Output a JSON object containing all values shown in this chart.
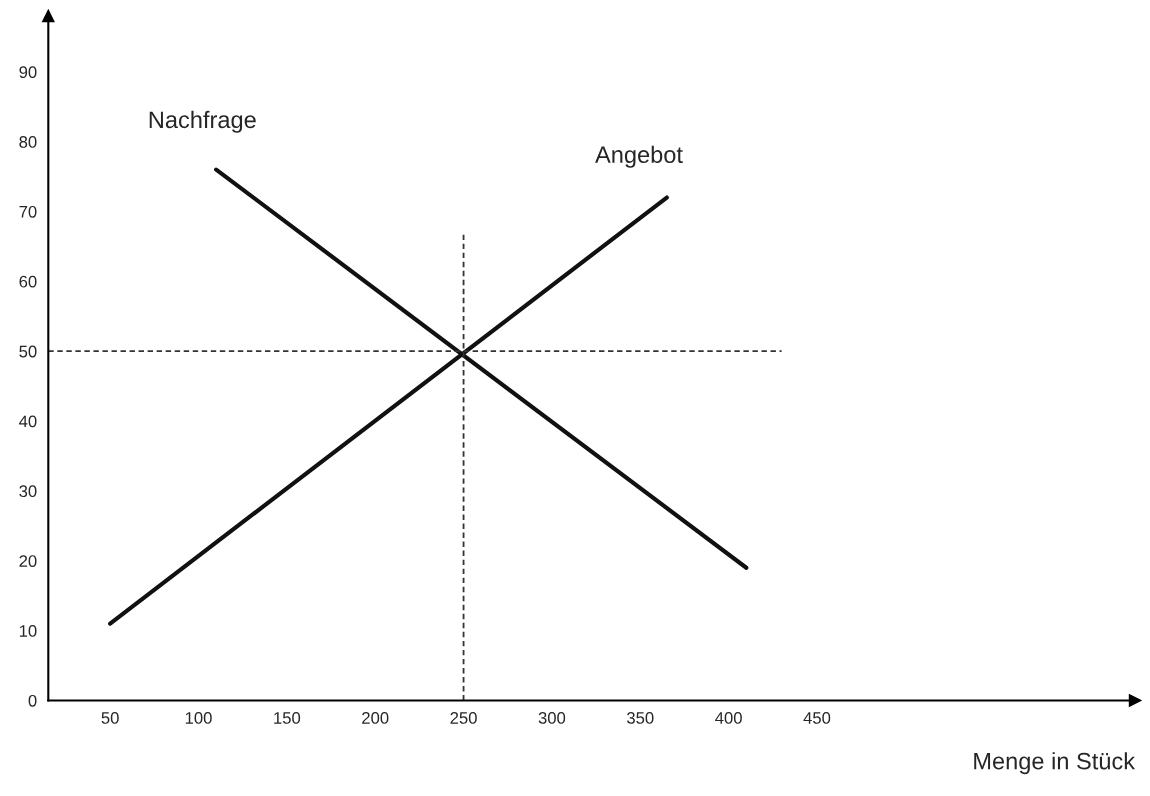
{
  "chart_data": {
    "type": "line",
    "xlabel": "Menge in Stück",
    "xlim": [
      15,
      630
    ],
    "xticks": [
      50,
      100,
      150,
      200,
      250,
      300,
      350,
      400,
      450
    ],
    "ylim": [
      0,
      98
    ],
    "yticks": [
      0,
      10,
      20,
      30,
      40,
      50,
      60,
      70,
      80,
      90
    ],
    "grid": false,
    "legend": false,
    "marker": "none",
    "series": [
      {
        "name": "Nachfrage",
        "color": "#111111",
        "x": [
          110,
          410
        ],
        "values": [
          76,
          19
        ],
        "line_style": "solid"
      },
      {
        "name": "Angebot",
        "color": "#111111",
        "x": [
          50,
          365
        ],
        "values": [
          11,
          72
        ],
        "line_style": "solid"
      },
      {
        "color": "#333333",
        "x": [
          15,
          430
        ],
        "values": [
          50,
          50
        ],
        "line_style": "dashed"
      },
      {
        "color": "#333333",
        "x": [
          250,
          250
        ],
        "values": [
          0,
          67
        ],
        "line_style": "dashed"
      }
    ]
  }
}
